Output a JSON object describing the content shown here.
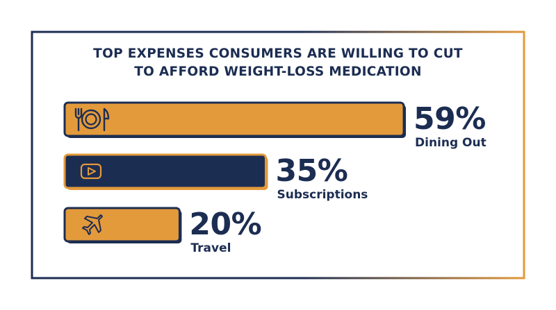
{
  "chart_data": {
    "type": "bar",
    "orientation": "horizontal",
    "title_lines": [
      "TOP EXPENSES CONSUMERS ARE WILLING TO CUT",
      "TO AFFORD WEIGHT-LOSS MEDICATION"
    ],
    "categories": [
      "Dining Out",
      "Subscriptions",
      "Travel"
    ],
    "values": [
      59,
      35,
      20
    ],
    "value_labels": [
      "59%",
      "35%",
      "20%"
    ],
    "unit": "%",
    "xlim": [
      0,
      100
    ],
    "icons": [
      "fork-plate-knife-icon",
      "play-button-icon",
      "airplane-icon"
    ],
    "bar_colors": [
      "#e39a3b",
      "#1c2d52",
      "#e39a3b"
    ],
    "border_colors": [
      "#1c2d52",
      "#e39a3b",
      "#1c2d52"
    ],
    "grid": false,
    "legend": "none"
  },
  "colors": {
    "navy": "#1c2d52",
    "orange": "#e39a3b",
    "background": "#ffffff"
  }
}
